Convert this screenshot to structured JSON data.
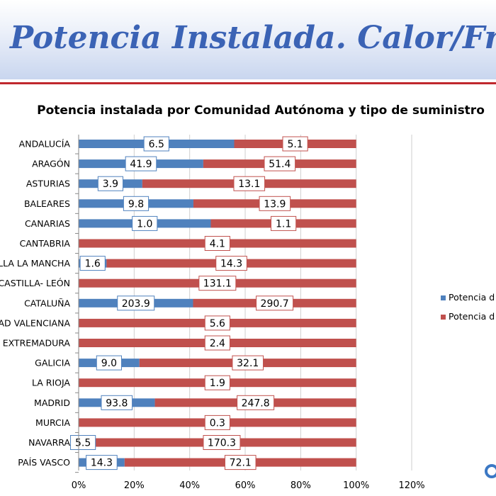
{
  "header": {
    "title": "Potencia Instalada. Calor/Frío"
  },
  "chart_data": {
    "type": "bar",
    "orientation": "horizontal",
    "stacked": "percent",
    "title": "Potencia instalada por Comunidad Autónoma y tipo de suministro",
    "categories": [
      "ANDALUCÍA",
      "ARAGÓN",
      "ASTURIAS",
      "BALEARES",
      "CANARIAS",
      "CANTABRIA",
      "CASTILLA LA MANCHA",
      "CASTILLA- LEÓN",
      "CATALUÑA",
      "COMUNIDAD VALENCIANA",
      "EXTREMADURA",
      "GALICIA",
      "LA RIOJA",
      "MADRID",
      "MURCIA",
      "NAVARRA",
      "PAÍS VASCO"
    ],
    "series": [
      {
        "name": "Potencia d",
        "color": "#4f81bd",
        "values": [
          6.5,
          41.9,
          3.9,
          9.8,
          1.0,
          null,
          1.6,
          null,
          203.9,
          null,
          null,
          9.0,
          null,
          93.8,
          null,
          5.5,
          14.3
        ]
      },
      {
        "name": "Potencia d",
        "color": "#c0504d",
        "values": [
          5.1,
          51.4,
          13.1,
          13.9,
          1.1,
          4.1,
          14.3,
          131.1,
          290.7,
          5.6,
          2.4,
          32.1,
          1.9,
          247.8,
          0.3,
          170.3,
          72.1
        ]
      }
    ],
    "xlim": [
      0,
      120
    ],
    "xticks": [
      "0%",
      "20%",
      "40%",
      "60%",
      "80%",
      "100%",
      "120%"
    ],
    "grid": true,
    "legend": "right"
  }
}
